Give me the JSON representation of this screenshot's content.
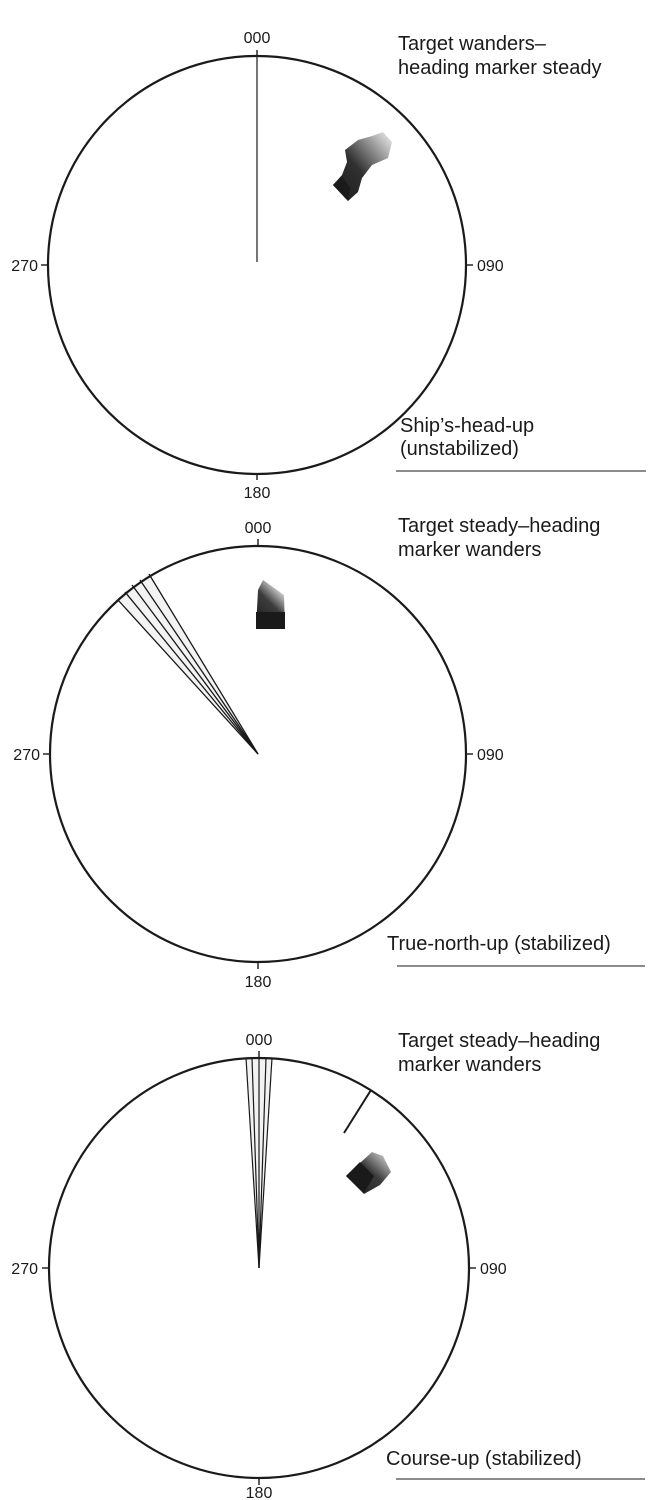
{
  "panels": [
    {
      "id": "ships-head-up",
      "bearings": {
        "top": "000",
        "right": "090",
        "bottom": "180",
        "left": "270"
      },
      "description": [
        "Target wanders–",
        "heading marker steady"
      ],
      "mode_label": [
        "Ship’s-head-up",
        "(unstabilized)"
      ]
    },
    {
      "id": "true-north-up",
      "bearings": {
        "top": "000",
        "right": "090",
        "bottom": "180",
        "left": "270"
      },
      "description": [
        "Target steady–heading",
        "marker wanders"
      ],
      "mode_label": [
        "True-north-up (stabilized)"
      ]
    },
    {
      "id": "course-up",
      "bearings": {
        "top": "000",
        "right": "090",
        "bottom": "180",
        "left": "270"
      },
      "description": [
        "Target steady–heading",
        "marker wanders"
      ],
      "mode_label": [
        "Course-up (stabilized)"
      ]
    }
  ],
  "colors": {
    "ink": "#1a1a1a",
    "background": "#ffffff"
  }
}
